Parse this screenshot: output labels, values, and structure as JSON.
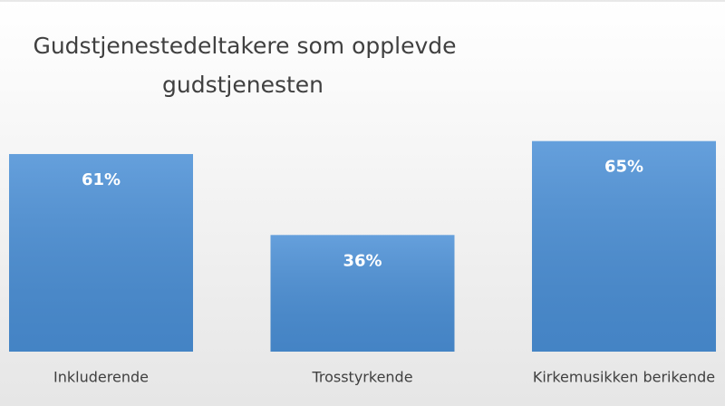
{
  "chart_data": {
    "type": "bar",
    "title": [
      "Gudstjenestedeltakere som  opplevde",
      "gudstjenesten"
    ],
    "categories": [
      "Inkluderende",
      "Trosstyrkende",
      "Kirkemusikken berikende"
    ],
    "values": [
      61,
      36,
      65
    ],
    "value_labels": [
      "61%",
      "36%",
      "65%"
    ],
    "color": "#4a8fd6"
  }
}
